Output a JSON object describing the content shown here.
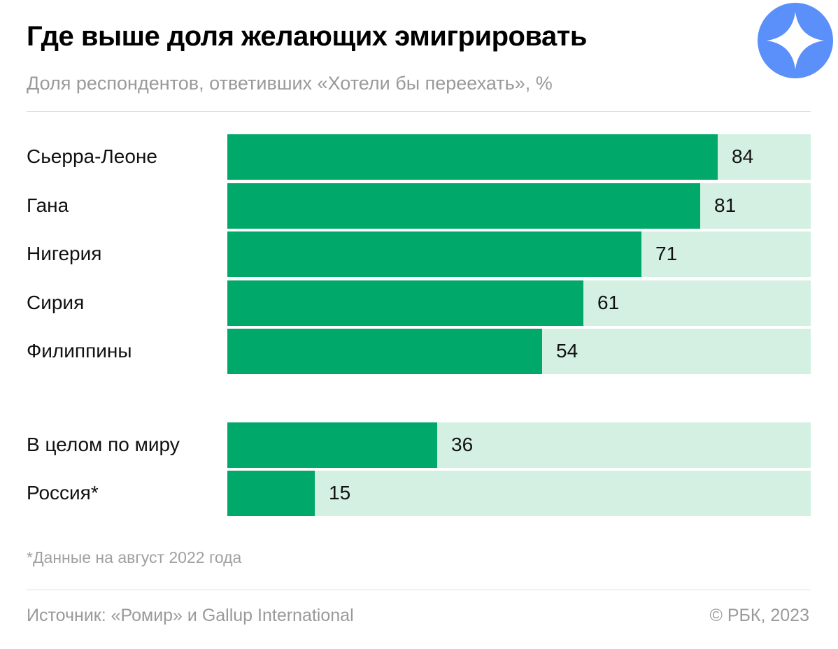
{
  "header": {
    "title": "Где выше доля желающих эмигрировать",
    "subtitle": "Доля респондентов, ответивших «Хотели бы переехать», %"
  },
  "chart_data": {
    "type": "bar",
    "orientation": "horizontal",
    "title": "Где выше доля желающих эмигрировать",
    "subtitle": "Доля респондентов, ответивших «Хотели бы переехать», %",
    "xlim": [
      0,
      100
    ],
    "grid": false,
    "categories": [
      "Сьерра-Леоне",
      "Гана",
      "Нигерия",
      "Сирия",
      "Филиппины",
      "В целом по миру",
      "Россия*"
    ],
    "values": [
      84,
      81,
      71,
      61,
      54,
      36,
      15
    ],
    "value_labels": [
      "84",
      "81",
      "71",
      "61",
      "54",
      "36",
      "15"
    ],
    "colors": {
      "bar": "#00a869",
      "track": "#d3f0e2"
    }
  },
  "footer": {
    "note": "*Данные на август 2022 года",
    "source": "Источник: «Ромир» и Gallup International",
    "copyright": "© РБК, 2023"
  },
  "logo": {
    "icon": "four-point-star-icon",
    "color": "#5b8ff9"
  }
}
